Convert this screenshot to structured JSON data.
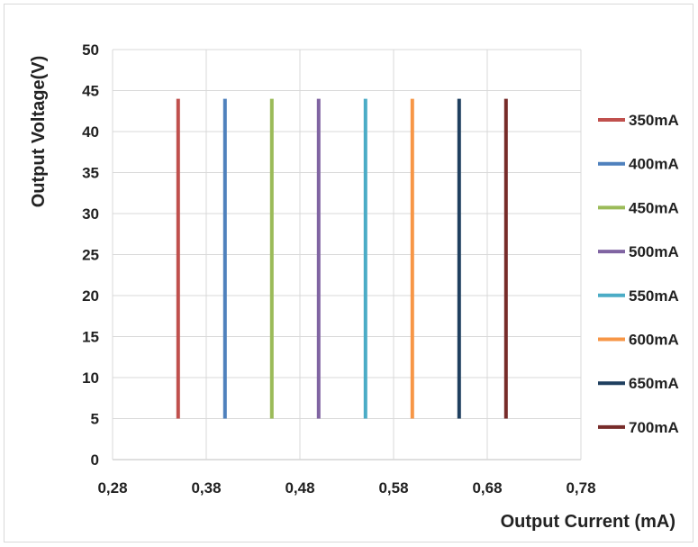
{
  "chart_data": {
    "type": "line",
    "title": "",
    "xlabel": "Output Current (mA)",
    "ylabel": "Output Voltage(V)",
    "xlim": [
      0.28,
      0.78
    ],
    "ylim": [
      0,
      50
    ],
    "x_ticks": [
      "0,28",
      "0,38",
      "0,48",
      "0,58",
      "0,68",
      "0,78"
    ],
    "y_ticks": [
      "0",
      "5",
      "10",
      "15",
      "20",
      "25",
      "30",
      "35",
      "40",
      "45",
      "50"
    ],
    "grid": true,
    "legend_position": "right",
    "series": [
      {
        "name": "350mA",
        "color": "#c0504d",
        "points": [
          {
            "x": 0.35,
            "y": 5
          },
          {
            "x": 0.35,
            "y": 44
          }
        ]
      },
      {
        "name": "400mA",
        "color": "#4f81bd",
        "points": [
          {
            "x": 0.4,
            "y": 5
          },
          {
            "x": 0.4,
            "y": 44
          }
        ]
      },
      {
        "name": "450mA",
        "color": "#9bbb59",
        "points": [
          {
            "x": 0.45,
            "y": 5
          },
          {
            "x": 0.45,
            "y": 44
          }
        ]
      },
      {
        "name": "500mA",
        "color": "#8064a2",
        "points": [
          {
            "x": 0.5,
            "y": 5
          },
          {
            "x": 0.5,
            "y": 44
          }
        ]
      },
      {
        "name": "550mA",
        "color": "#4bacc6",
        "points": [
          {
            "x": 0.55,
            "y": 5
          },
          {
            "x": 0.55,
            "y": 44
          }
        ]
      },
      {
        "name": "600mA",
        "color": "#f79646",
        "points": [
          {
            "x": 0.6,
            "y": 5
          },
          {
            "x": 0.6,
            "y": 44
          }
        ]
      },
      {
        "name": "650mA",
        "color": "#1f3f5f",
        "points": [
          {
            "x": 0.65,
            "y": 5
          },
          {
            "x": 0.65,
            "y": 44
          }
        ]
      },
      {
        "name": "700mA",
        "color": "#772c2a",
        "points": [
          {
            "x": 0.7,
            "y": 5
          },
          {
            "x": 0.7,
            "y": 44
          }
        ]
      }
    ]
  }
}
